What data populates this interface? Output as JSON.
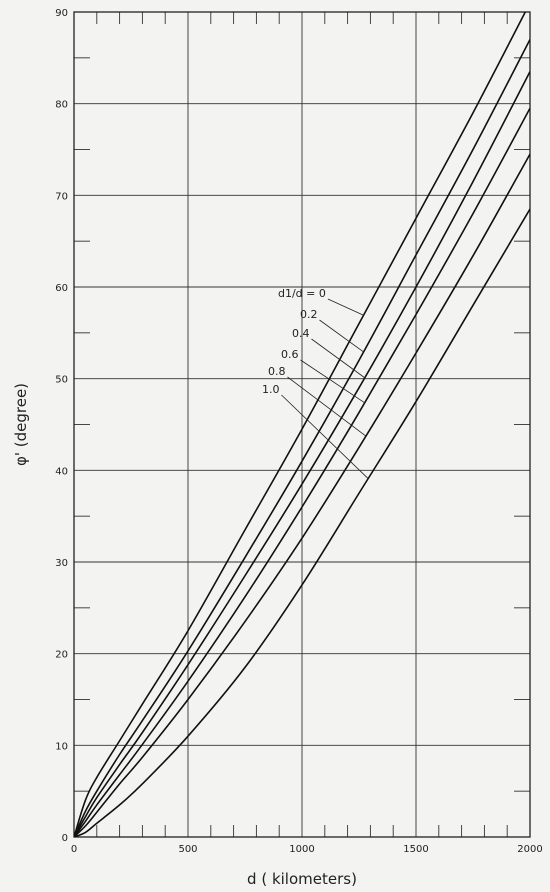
{
  "chart_data": {
    "type": "line",
    "title": "",
    "xlabel": "d ( kilometers)",
    "ylabel": "φ' (degree)",
    "xlim": [
      0,
      2000
    ],
    "ylim": [
      0,
      90
    ],
    "x_ticks": [
      0,
      500,
      1000,
      1500,
      2000
    ],
    "x_tick_labels": [
      "0",
      "500",
      "1000",
      "1500",
      "2000"
    ],
    "y_ticks": [
      0,
      10,
      20,
      30,
      40,
      50,
      60,
      70,
      80,
      90
    ],
    "y_tick_labels": [
      "0",
      "10",
      "20",
      "30",
      "40",
      "50",
      "60",
      "70",
      "80",
      "90"
    ],
    "grid": true,
    "x": [
      0,
      50,
      100,
      200,
      300,
      500,
      750,
      1000,
      1250,
      1500,
      1750,
      2000
    ],
    "series": [
      {
        "name": "d1/d = 0",
        "values": [
          0,
          4.0,
          6.5,
          10.5,
          14.5,
          22.5,
          33.5,
          44.5,
          56,
          67.5,
          79,
          91
        ]
      },
      {
        "name": "0.2",
        "values": [
          0,
          2.8,
          5.0,
          9.0,
          12.7,
          20.3,
          30.5,
          41,
          52,
          63.5,
          75,
          87
        ]
      },
      {
        "name": "0.4",
        "values": [
          0,
          2.2,
          4.3,
          7.9,
          11.4,
          18.8,
          28.5,
          38.5,
          49,
          60,
          71.5,
          83.5
        ]
      },
      {
        "name": "0.6",
        "values": [
          0,
          1.7,
          3.5,
          6.8,
          10.1,
          17.0,
          26.2,
          36,
          46.3,
          57,
          68,
          79.5
        ]
      },
      {
        "name": "0.8",
        "values": [
          0,
          1.2,
          2.7,
          5.8,
          8.7,
          15.0,
          23.5,
          32.6,
          42.5,
          52.8,
          63.4,
          74.5
        ]
      },
      {
        "name": "1.0",
        "values": [
          0,
          0.5,
          1.5,
          3.5,
          5.8,
          11.0,
          18.5,
          27.5,
          37.5,
          47.5,
          58,
          68.5
        ]
      }
    ],
    "annotations": [
      {
        "text": "d1/d = 0",
        "series": "d1/d = 0"
      },
      {
        "text": "0.2",
        "series": "0.2"
      },
      {
        "text": "0.4",
        "series": "0.4"
      },
      {
        "text": "0.6",
        "series": "0.6"
      },
      {
        "text": "0.8",
        "series": "0.8"
      },
      {
        "text": "1.0",
        "series": "1.0"
      }
    ]
  }
}
